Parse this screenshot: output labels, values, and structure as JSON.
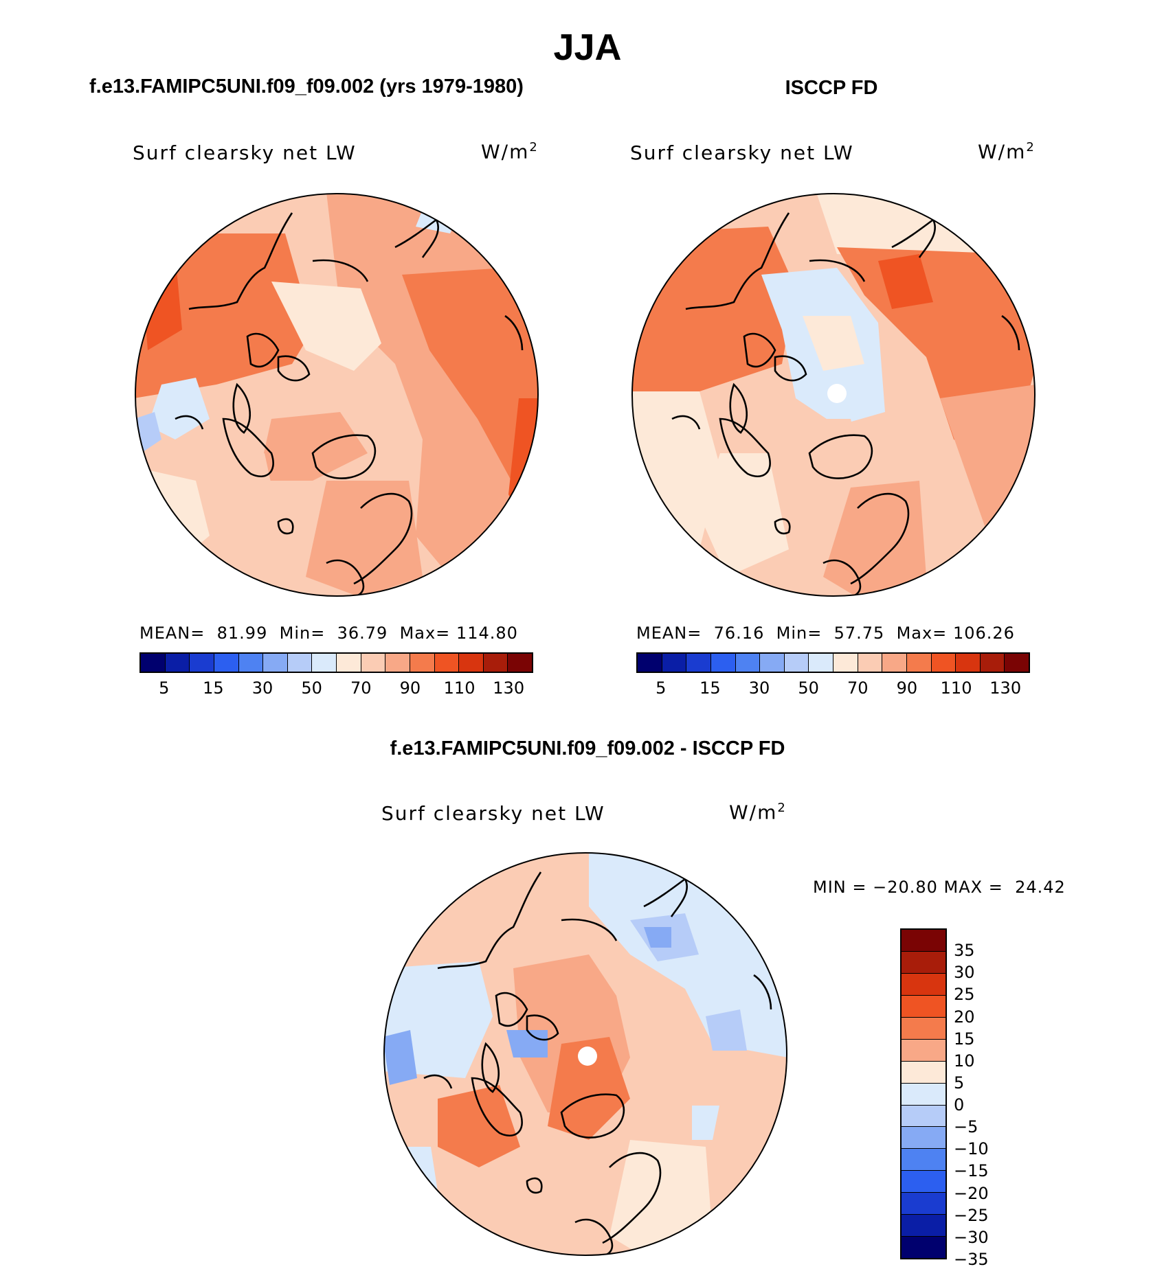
{
  "season": "JJA",
  "panels": {
    "model": {
      "case_title": "f.e13.FAMIPC5UNI.f09_f09.002 (yrs 1979-1980)",
      "variable": "Surf clearsky net LW",
      "units": "W/m",
      "units_exp": "2",
      "mean_label": "MEAN=",
      "mean": "81.99",
      "min_label": "Min=",
      "min": "36.79",
      "max_label": "Max=",
      "max": "114.80"
    },
    "obs": {
      "case_title": "ISCCP FD",
      "variable": "Surf clearsky net LW",
      "units": "W/m",
      "units_exp": "2",
      "mean_label": "MEAN=",
      "mean": "76.16",
      "min_label": "Min=",
      "min": "57.75",
      "max_label": "Max=",
      "max": "106.26"
    },
    "diff": {
      "case_title": "f.e13.FAMIPC5UNI.f09_f09.002 - ISCCP FD",
      "variable": "Surf clearsky net LW",
      "units": "W/m",
      "units_exp": "2",
      "minmax_text": "MIN = −20.80 MAX =  24.42"
    }
  },
  "colorbar_abs": {
    "colors": [
      "#00006e",
      "#0a1ea6",
      "#1a3cd0",
      "#2c5ff0",
      "#4e82f2",
      "#86aaf4",
      "#b6ccf8",
      "#daeafb",
      "#fde9d8",
      "#fbccb4",
      "#f8a887",
      "#f47b4c",
      "#ef5423",
      "#d8350f",
      "#a81d0a",
      "#7a0404"
    ],
    "tick_labels": [
      "5",
      "15",
      "30",
      "50",
      "70",
      "90",
      "110",
      "130"
    ]
  },
  "colorbar_diff": {
    "colors": [
      "#7a0404",
      "#a81d0a",
      "#d8350f",
      "#ef5423",
      "#f47b4c",
      "#f8a887",
      "#fde9d8",
      "#daeafb",
      "#b6ccf8",
      "#86aaf4",
      "#4e82f2",
      "#2c5ff0",
      "#1a3cd0",
      "#0a1ea6",
      "#00006e"
    ],
    "tick_labels": [
      "35",
      "30",
      "25",
      "20",
      "15",
      "10",
      "5",
      "0",
      "−5",
      "−10",
      "−15",
      "−20",
      "−25",
      "−30",
      "−35"
    ]
  },
  "chart_data": [
    {
      "type": "heatmap",
      "projection": "north polar stereographic",
      "title": "f.e13.FAMIPC5UNI.f09_f09.002 (yrs 1979-1980)",
      "variable": "Surf clearsky net LW",
      "units": "W/m2",
      "levels": [
        5,
        10,
        15,
        20,
        30,
        40,
        50,
        60,
        70,
        80,
        90,
        100,
        110,
        120,
        130
      ],
      "stats": {
        "mean": 81.99,
        "min": 36.79,
        "max": 114.8
      }
    },
    {
      "type": "heatmap",
      "projection": "north polar stereographic",
      "title": "ISCCP FD",
      "variable": "Surf clearsky net LW",
      "units": "W/m2",
      "levels": [
        5,
        10,
        15,
        20,
        30,
        40,
        50,
        60,
        70,
        80,
        90,
        100,
        110,
        120,
        130
      ],
      "stats": {
        "mean": 76.16,
        "min": 57.75,
        "max": 106.26
      }
    },
    {
      "type": "heatmap",
      "projection": "north polar stereographic",
      "title": "f.e13.FAMIPC5UNI.f09_f09.002 - ISCCP FD",
      "variable": "Surf clearsky net LW",
      "units": "W/m2",
      "levels": [
        -35,
        -30,
        -25,
        -20,
        -15,
        -10,
        -5,
        0,
        5,
        10,
        15,
        20,
        25,
        30,
        35
      ],
      "stats": {
        "min": -20.8,
        "max": 24.42
      }
    }
  ]
}
